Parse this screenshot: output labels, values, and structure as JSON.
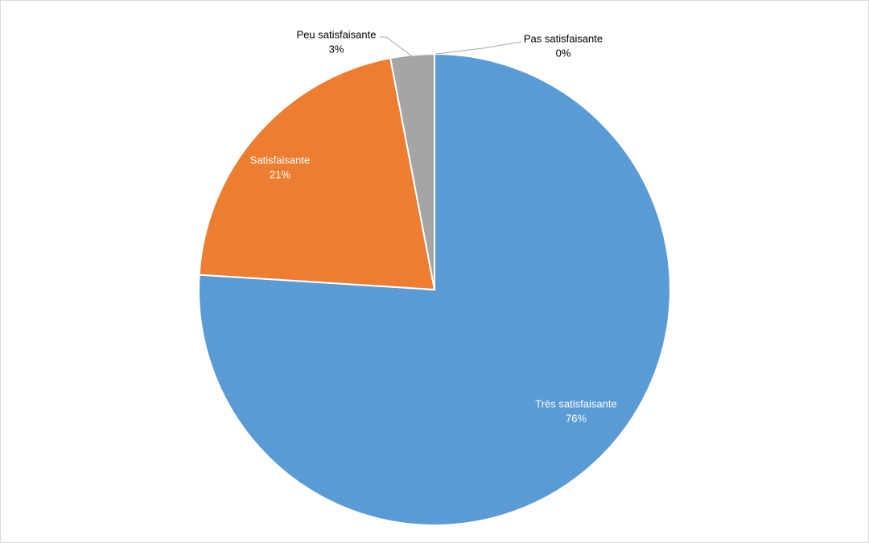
{
  "chart_data": {
    "type": "pie",
    "categories": [
      "Très satisfaisante",
      "Satisfaisante",
      "Peu satisfaisante",
      "Pas satisfaisante"
    ],
    "values": [
      76,
      21,
      3,
      0
    ],
    "value_labels": [
      "76%",
      "21%",
      "3%",
      "0%"
    ],
    "colors": [
      "#5b9bd5",
      "#ed7d31",
      "#a5a5a5",
      "#ffc000"
    ]
  }
}
